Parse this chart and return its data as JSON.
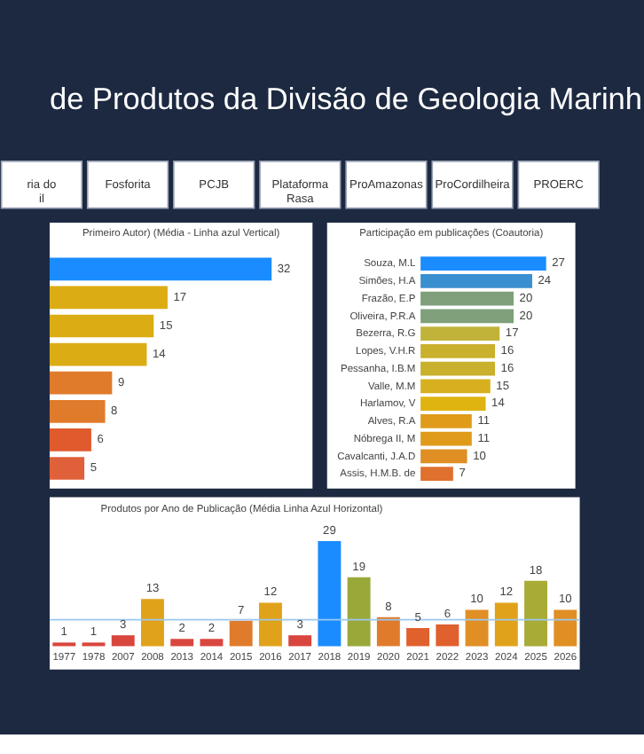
{
  "chart_data": [
    {
      "type": "other",
      "title": "de Produtos da Divisão de Geologia Marinh",
      "annotations": [
        "ria do\nil",
        "Fosforita",
        "PCJB",
        "Plataforma\nRasa",
        "ProAmazonas",
        "ProCordilheira",
        "PROERC"
      ]
    },
    {
      "type": "bar",
      "orientation": "horizontal",
      "title": "Primeiro Autor) (Média - Linha azul Vertical)",
      "categories": [
        null,
        null,
        null,
        null,
        null,
        null,
        null,
        null
      ],
      "values": [
        32,
        17,
        15,
        14,
        9,
        8,
        6,
        5
      ],
      "colors": [
        "#1a8cff",
        "#dbac14",
        "#dbac14",
        "#dbac14",
        "#e07b2c",
        "#e07b2c",
        "#e05a2e",
        "#e0603a"
      ],
      "data_labels": true
    },
    {
      "type": "bar",
      "orientation": "horizontal",
      "title": "Participação em publicações (Coautoria)",
      "categories": [
        "Souza, M.L",
        "Simões, H.A",
        "Frazão, E.P",
        "Oliveira, P.R.A",
        "Bezerra, R.G",
        "Lopes, V.H.R",
        "Pessanha, I.B.M",
        "Valle, M.M",
        "Harlamov, V",
        "Alves, R.A",
        "Nóbrega II, M",
        "Cavalcanti, J.A.D",
        "Assis, H.M.B. de"
      ],
      "values": [
        27,
        24,
        20,
        20,
        17,
        16,
        16,
        15,
        14,
        11,
        11,
        10,
        7
      ],
      "colors": [
        "#1a8cff",
        "#3a8fd0",
        "#7fa07a",
        "#7fa07a",
        "#c1b33a",
        "#c9b02d",
        "#c9b02d",
        "#d6b01f",
        "#dfb310",
        "#e09b1a",
        "#e09b1a",
        "#e08f24",
        "#e0702e"
      ],
      "data_labels": true
    },
    {
      "type": "bar",
      "title": "Produtos por Ano de Publicação (Média Linha Azul Horizontal)",
      "categories": [
        "1977",
        "1978",
        "2007",
        "2008",
        "2013",
        "2014",
        "2015",
        "2016",
        "2017",
        "2018",
        "2019",
        "2020",
        "2021",
        "2022",
        "2023",
        "2024",
        "2025",
        "2026"
      ],
      "values": [
        1,
        1,
        3,
        13,
        2,
        2,
        7,
        12,
        3,
        29,
        19,
        8,
        5,
        6,
        10,
        12,
        18,
        10
      ],
      "colors": [
        "#d9463e",
        "#d9463e",
        "#d9463e",
        "#e0a21a",
        "#d9463e",
        "#d9463e",
        "#e07b2c",
        "#e0a21a",
        "#d9463e",
        "#1a8cff",
        "#9aa83a",
        "#e07b2c",
        "#e0602e",
        "#e0602e",
        "#e08f24",
        "#e0a21a",
        "#a8ab35",
        "#e08f24"
      ],
      "data_labels": true,
      "ref_lines": [
        {
          "axis": "y",
          "value": 7.3,
          "color": "#9cc8f0"
        }
      ]
    }
  ]
}
